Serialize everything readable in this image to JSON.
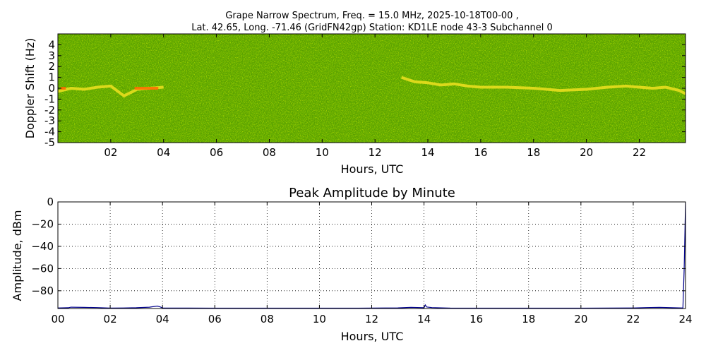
{
  "chart_data": [
    {
      "type": "heatmap",
      "title_line1": "Grape Narrow Spectrum, Freq. = 15.0 MHz, 2025-10-18T00-00 ,",
      "title_line2": "Lat.  42.65, Long. -71.46 (GridFN42gp) Station: KD1LE node 43-3 Subchannel 0",
      "xlabel": "Hours, UTC",
      "ylabel": "Doppler Shift (Hz)",
      "xlim": [
        0,
        23.75
      ],
      "ylim": [
        -5,
        5
      ],
      "x_ticks": [
        2,
        4,
        6,
        8,
        10,
        12,
        14,
        16,
        18,
        20,
        22
      ],
      "x_tick_labels": [
        "02",
        "04",
        "06",
        "08",
        "10",
        "12",
        "14",
        "16",
        "18",
        "20",
        "22"
      ],
      "y_ticks": [
        4,
        3,
        2,
        1,
        0,
        -1,
        -2,
        -3,
        -4,
        -5
      ],
      "y_tick_labels": [
        "4",
        "3",
        "2",
        "1",
        "0",
        "-1",
        "-2",
        "-3",
        "-4",
        "-5"
      ],
      "colors": {
        "background": "#5aa000",
        "noise_dark": "#2f7a00",
        "noise_light": "#9cd000",
        "signal": "#f0e020",
        "signal_hot": "#ff6a00"
      },
      "trace": {
        "x": [
          0,
          0.5,
          1.0,
          1.5,
          2.0,
          2.5,
          3.0,
          3.5,
          4.0,
          13.0,
          13.5,
          14.0,
          14.5,
          15.0,
          15.5,
          16.0,
          17.0,
          18.0,
          19.0,
          20.0,
          20.8,
          21.5,
          22.0,
          22.5,
          23.0,
          23.5,
          23.75
        ],
        "y": [
          -0.3,
          0.0,
          -0.1,
          0.1,
          0.2,
          -0.7,
          -0.1,
          0.0,
          0.1,
          1.0,
          0.6,
          0.5,
          0.3,
          0.4,
          0.2,
          0.1,
          0.1,
          0.0,
          -0.2,
          -0.1,
          0.1,
          0.2,
          0.1,
          0.0,
          0.1,
          -0.2,
          -0.5
        ]
      },
      "hot_segments": [
        [
          0.1,
          0.3
        ],
        [
          2.9,
          3.8
        ]
      ]
    },
    {
      "type": "line",
      "title": "Peak Amplitude by Minute",
      "xlabel": "Hours, UTC",
      "ylabel": "Amplitude, dBm",
      "xlim": [
        0,
        24
      ],
      "ylim": [
        -96,
        0
      ],
      "grid": true,
      "x_ticks": [
        0,
        2,
        4,
        6,
        8,
        10,
        12,
        14,
        16,
        18,
        20,
        22,
        24
      ],
      "x_tick_labels": [
        "00",
        "02",
        "04",
        "06",
        "08",
        "10",
        "12",
        "14",
        "16",
        "18",
        "20",
        "22",
        "24"
      ],
      "y_ticks": [
        0,
        -20,
        -40,
        -60,
        -80
      ],
      "y_tick_labels": [
        "0",
        "−20",
        "−40",
        "−60",
        "−80"
      ],
      "line_color": "#00008b",
      "x": [
        0,
        0.4,
        0.5,
        1.0,
        1.5,
        2.0,
        2.5,
        3.0,
        3.5,
        3.8,
        3.9,
        4.0,
        5,
        6,
        8,
        10,
        12,
        13.0,
        13.5,
        14.0,
        14.05,
        14.1,
        14.3,
        15,
        16,
        18,
        20,
        22,
        22.5,
        23,
        23.5,
        23.9,
        23.95,
        24.0
      ],
      "y": [
        -95.5,
        -95.3,
        -94.8,
        -95.0,
        -95.2,
        -95.6,
        -95.5,
        -95.3,
        -94.8,
        -93.8,
        -94.5,
        -95.5,
        -95.6,
        -95.7,
        -95.7,
        -95.7,
        -95.6,
        -95.4,
        -95.0,
        -95.3,
        -92.8,
        -94.6,
        -95.2,
        -95.6,
        -95.7,
        -95.7,
        -95.7,
        -95.5,
        -95.2,
        -95.0,
        -95.3,
        -95.5,
        -60.0,
        -0.5
      ]
    }
  ]
}
